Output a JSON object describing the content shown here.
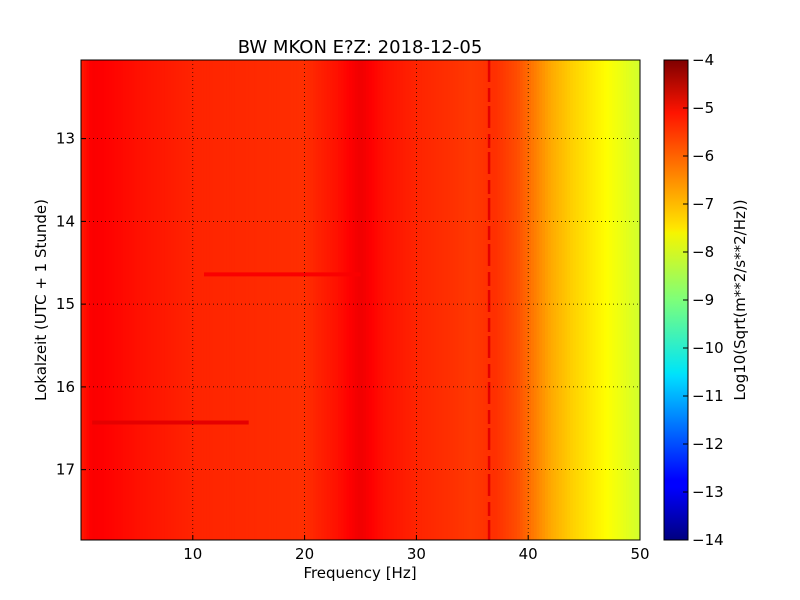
{
  "chart_data": {
    "type": "heatmap",
    "title": "BW MKON E?Z: 2018-12-05",
    "xlabel": "Frequency [Hz]",
    "ylabel": "Lokalzeit (UTC + 1 Stunde)",
    "xlim": [
      0,
      50
    ],
    "ylim": [
      12.05,
      17.85
    ],
    "y_inverted": true,
    "grid": true,
    "x_ticks": [
      10,
      20,
      30,
      40,
      50
    ],
    "x_tick_labels": [
      "10",
      "20",
      "30",
      "40",
      "50"
    ],
    "y_ticks": [
      13,
      14,
      15,
      16,
      17
    ],
    "y_tick_labels": [
      "13",
      "14",
      "15",
      "16",
      "17"
    ],
    "colorbar": {
      "label": "Log10(Sqrt(m**2/s**2/Hz))",
      "range": [
        -14,
        -4
      ],
      "colormap": "jet",
      "ticks": [
        -4,
        -5,
        -6,
        -7,
        -8,
        -9,
        -10,
        -11,
        -12,
        -13,
        -14
      ],
      "tick_labels": [
        "−4",
        "−5",
        "−6",
        "−7",
        "−8",
        "−9",
        "−10",
        "−11",
        "−12",
        "−13",
        "−14"
      ]
    },
    "spectral_profile": {
      "frequency_hz": [
        0,
        1,
        5,
        10,
        20,
        23,
        25,
        27,
        30,
        35,
        37,
        39,
        40,
        41,
        42,
        44,
        46,
        48,
        50
      ],
      "log_amplitude": [
        -5.5,
        -5.2,
        -5.4,
        -5.6,
        -5.7,
        -5.4,
        -5.1,
        -5.4,
        -5.6,
        -5.8,
        -5.7,
        -6.0,
        -6.3,
        -6.6,
        -6.9,
        -7.3,
        -7.6,
        -7.9,
        -8.2
      ]
    },
    "features": [
      {
        "kind": "line",
        "frequency_hz": 36.5,
        "note_value": -5.0
      },
      {
        "kind": "burst",
        "time": 16.43,
        "frequency_range": [
          1,
          15
        ],
        "value": -5.0
      },
      {
        "kind": "burst",
        "time": 14.64,
        "frequency_range": [
          11,
          25
        ],
        "value": -5.2
      }
    ]
  }
}
